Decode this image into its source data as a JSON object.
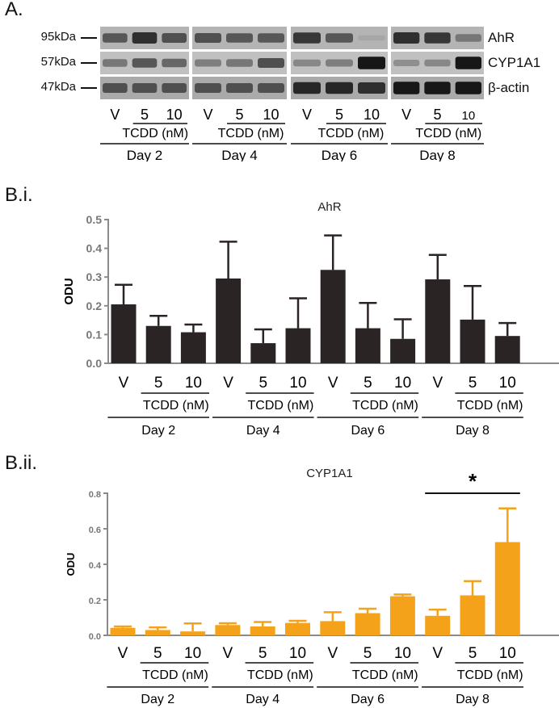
{
  "panels": {
    "a_label": "A.",
    "bi_label": "B.i.",
    "bii_label": "B.ii."
  },
  "blot": {
    "mw_labels": [
      "95kDa",
      "57kDa",
      "47kDa"
    ],
    "protein_labels": [
      "AhR",
      "CYP1A1",
      "β-actin"
    ],
    "lane_labels": [
      "V",
      "5",
      "10"
    ],
    "treatment_label": "TCDD (nM)",
    "days": [
      "Day 2",
      "Day 4",
      "Day 6",
      "Day 8"
    ],
    "band_intensity": {
      "AhR": [
        [
          0.55,
          0.8,
          0.6
        ],
        [
          0.6,
          0.55,
          0.55
        ],
        [
          0.75,
          0.55,
          0.05
        ],
        [
          0.8,
          0.75,
          0.35
        ]
      ],
      "CYP1A1": [
        [
          0.35,
          0.55,
          0.45
        ],
        [
          0.3,
          0.35,
          0.6
        ],
        [
          0.25,
          0.3,
          0.95
        ],
        [
          0.2,
          0.25,
          0.95
        ]
      ],
      "β-actin": [
        [
          0.6,
          0.6,
          0.6
        ],
        [
          0.6,
          0.6,
          0.6
        ],
        [
          0.85,
          0.85,
          0.8
        ],
        [
          0.95,
          0.95,
          0.95
        ]
      ]
    }
  },
  "colors": {
    "ahr_bar": "#2b2425",
    "cyp_bar": "#f5a21b",
    "axis": "#8a8a8a"
  },
  "chart_data": [
    {
      "type": "bar",
      "title": "AhR",
      "ylabel": "ODU",
      "ylim": [
        0,
        0.5
      ],
      "yticks": [
        "0.0",
        "0.1",
        "0.2",
        "0.3",
        "0.4",
        "0.5"
      ],
      "categories": [
        "V",
        "5",
        "10",
        "V",
        "5",
        "10",
        "V",
        "5",
        "10",
        "V",
        "5",
        "10"
      ],
      "group_sublabel": "TCDD (nM)",
      "groups": [
        "Day 2",
        "Day 4",
        "Day 6",
        "Day 8"
      ],
      "values": [
        0.205,
        0.13,
        0.108,
        0.295,
        0.07,
        0.122,
        0.325,
        0.122,
        0.085,
        0.292,
        0.152,
        0.095
      ],
      "errors": [
        0.068,
        0.035,
        0.027,
        0.128,
        0.048,
        0.104,
        0.12,
        0.088,
        0.068,
        0.085,
        0.117,
        0.045
      ]
    },
    {
      "type": "bar",
      "title": "CYP1A1",
      "ylabel": "ODU",
      "ylim": [
        0,
        0.8
      ],
      "yticks": [
        "0.0",
        "0.2",
        "0.4",
        "0.6",
        "0.8"
      ],
      "categories": [
        "V",
        "5",
        "10",
        "V",
        "5",
        "10",
        "V",
        "5",
        "10",
        "V",
        "5",
        "10"
      ],
      "group_sublabel": "TCDD (nM)",
      "groups": [
        "Day 2",
        "Day 4",
        "Day 6",
        "Day 8"
      ],
      "values": [
        0.042,
        0.03,
        0.022,
        0.058,
        0.05,
        0.07,
        0.08,
        0.125,
        0.22,
        0.11,
        0.225,
        0.525
      ],
      "errors": [
        0.008,
        0.015,
        0.045,
        0.01,
        0.025,
        0.012,
        0.05,
        0.025,
        0.01,
        0.035,
        0.08,
        0.19
      ],
      "annotation": "*"
    }
  ]
}
